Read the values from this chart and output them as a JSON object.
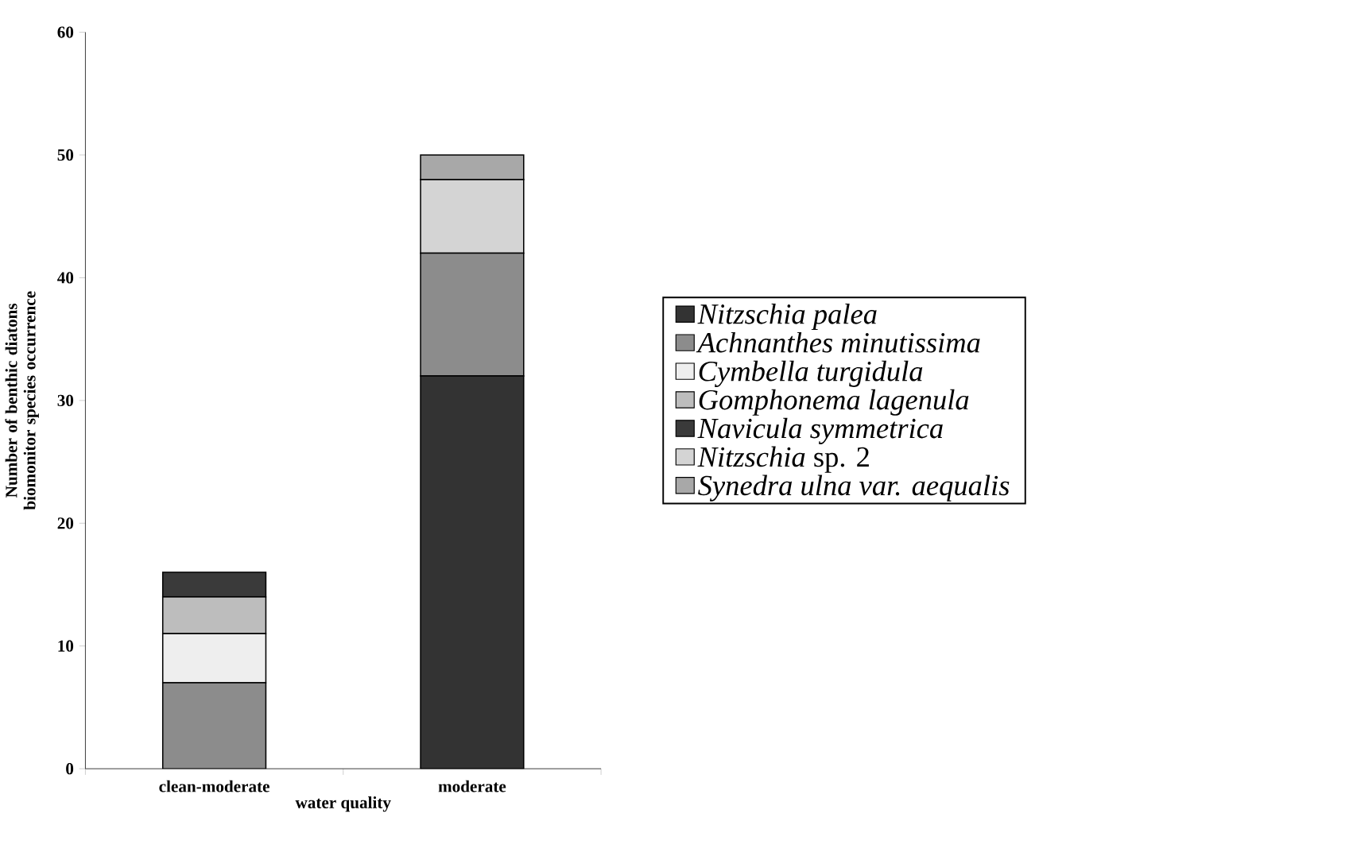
{
  "chart_data": {
    "type": "bar",
    "stacked": true,
    "xlabel": "water quality",
    "ylabel": "Number of benthic diatons\nbiomonitor species occurrence",
    "categories": [
      "clean-moderate",
      "moderate"
    ],
    "series": [
      {
        "name": "*Nitzschia palea*",
        "color": "#333333",
        "values": [
          0,
          32
        ]
      },
      {
        "name": "*Achnanthes minutissima*",
        "color": "#8c8c8c",
        "values": [
          7,
          10
        ]
      },
      {
        "name": "*Cymbella turgidula*",
        "color": "#eeeeee",
        "values": [
          4,
          0
        ]
      },
      {
        "name": "*Gomphonema lagenula*",
        "color": "#bdbdbd",
        "values": [
          3,
          0
        ]
      },
      {
        "name": "*Navicula symmetrica*",
        "color": "#3a3a3a",
        "values": [
          2,
          0
        ]
      },
      {
        "name": "*Nitzschia* sp. 2",
        "color": "#d4d4d4",
        "values": [
          0,
          6
        ]
      },
      {
        "name": "*Synedra ulna var. aequalis*",
        "color": "#a8a8a8",
        "values": [
          0,
          2
        ]
      }
    ],
    "ylim": [
      0,
      60
    ],
    "yticks": [
      0,
      10,
      20,
      30,
      40,
      50,
      60
    ],
    "grid": false,
    "legend": "right"
  }
}
